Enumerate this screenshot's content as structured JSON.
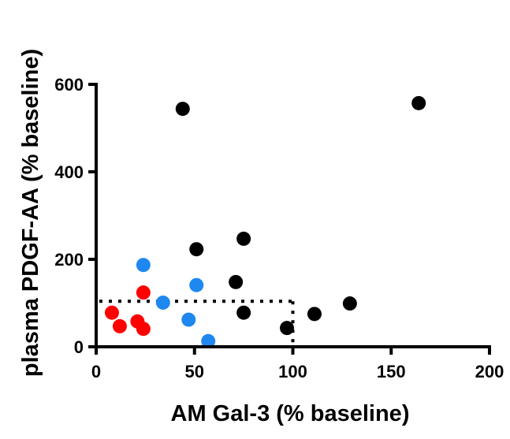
{
  "chart_data": {
    "type": "scatter",
    "title": "",
    "xlabel": "AM Gal-3 (% baseline)",
    "ylabel": "plasma PDGF-AA (% baseline)",
    "xlim": [
      0,
      200
    ],
    "ylim": [
      0,
      600
    ],
    "xticks": [
      0,
      50,
      100,
      150,
      200
    ],
    "yticks": [
      0,
      200,
      400,
      600
    ],
    "xtick_labels": [
      "0",
      "50",
      "100",
      "150",
      "200"
    ],
    "ytick_labels": [
      "0",
      "200",
      "400",
      "600"
    ],
    "grid": false,
    "legend": null,
    "series": [
      {
        "name": "red",
        "color": "#FF0000",
        "points": [
          {
            "x": 8,
            "y": 78
          },
          {
            "x": 12,
            "y": 47
          },
          {
            "x": 21,
            "y": 58
          },
          {
            "x": 24,
            "y": 41
          },
          {
            "x": 24,
            "y": 124
          }
        ]
      },
      {
        "name": "blue",
        "color": "#1E88F0",
        "points": [
          {
            "x": 24,
            "y": 187
          },
          {
            "x": 34,
            "y": 101
          },
          {
            "x": 47,
            "y": 62
          },
          {
            "x": 51,
            "y": 141
          },
          {
            "x": 57,
            "y": 13
          }
        ]
      },
      {
        "name": "black",
        "color": "#000000",
        "points": [
          {
            "x": 44,
            "y": 544
          },
          {
            "x": 51,
            "y": 223
          },
          {
            "x": 71,
            "y": 148
          },
          {
            "x": 75,
            "y": 247
          },
          {
            "x": 75,
            "y": 78
          },
          {
            "x": 97,
            "y": 43
          },
          {
            "x": 111,
            "y": 75
          },
          {
            "x": 129,
            "y": 99
          },
          {
            "x": 164,
            "y": 557
          }
        ]
      }
    ],
    "reference_lines": [
      {
        "type": "horizontal",
        "y": 104,
        "x_from": 0,
        "x_to": 100,
        "style": "dotted",
        "color": "#000000"
      },
      {
        "type": "vertical",
        "x": 100,
        "y_from": 0,
        "y_to": 104,
        "style": "dotted",
        "color": "#000000"
      }
    ]
  }
}
